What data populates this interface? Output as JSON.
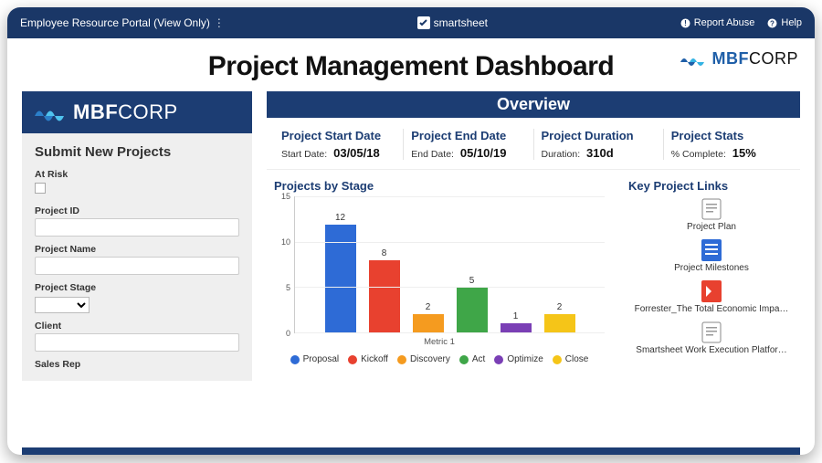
{
  "topbar": {
    "title": "Employee Resource Portal (View Only)",
    "brand": "smartsheet",
    "report": "Report Abuse",
    "help": "Help"
  },
  "header": {
    "title": "Project Management Dashboard",
    "logo_bold": "MBF",
    "logo_light": "CORP"
  },
  "sidebar": {
    "logo_bold": "MBF",
    "logo_light": "CORP",
    "form_title": "Submit New Projects",
    "fields": {
      "at_risk": "At Risk",
      "project_id": "Project ID",
      "project_name": "Project Name",
      "project_stage": "Project Stage",
      "client": "Client",
      "sales_rep": "Sales Rep"
    }
  },
  "overview": {
    "title": "Overview",
    "stats": [
      {
        "h": "Project Start Date",
        "k": "Start Date:",
        "v": "03/05/18"
      },
      {
        "h": "Project End Date",
        "k": "End Date:",
        "v": "05/10/19"
      },
      {
        "h": "Project Duration",
        "k": "Duration:",
        "v": "310d"
      },
      {
        "h": "Project Stats",
        "k": "% Complete:",
        "v": "15%"
      }
    ]
  },
  "chart": {
    "title": "Projects by Stage",
    "type": "bar",
    "categories": [
      "Proposal",
      "Kickoff",
      "Discovery",
      "Act",
      "Optimize",
      "Close"
    ],
    "values": [
      12,
      8,
      2,
      5,
      1,
      2
    ],
    "bar_colors": [
      "#2e6bd6",
      "#e8412f",
      "#f59b1f",
      "#3fa648",
      "#7a3fb5",
      "#f5c518"
    ],
    "ymax": 15,
    "yticks": [
      0,
      5,
      10,
      15
    ],
    "xlabel": "Metric 1",
    "grid_color": "#eeeeee",
    "axis_color": "#cccccc"
  },
  "links": {
    "title": "Key Project Links",
    "items": [
      {
        "label": "Project Plan",
        "icon": "sheet"
      },
      {
        "label": "Project Milestones",
        "icon": "sheet-blue"
      },
      {
        "label": "Forrester_The Total Economic Impa…",
        "icon": "pdf"
      },
      {
        "label": "Smartsheet Work Execution Platfor…",
        "icon": "sheet"
      }
    ]
  },
  "colors": {
    "navy": "#1c3d73",
    "topbar": "#1a3767"
  }
}
